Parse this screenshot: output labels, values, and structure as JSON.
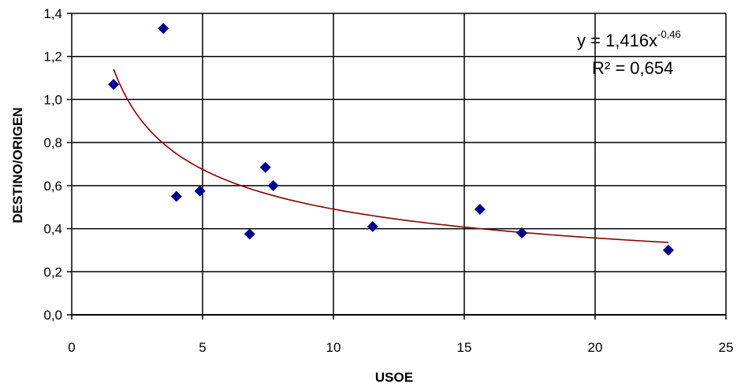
{
  "chart_data": {
    "type": "scatter",
    "title": "",
    "xlabel": "USOE",
    "ylabel": "DESTINO/ORIGEN",
    "xlim": [
      0,
      25
    ],
    "ylim": [
      0,
      1.4
    ],
    "x_ticks": [
      0,
      5,
      10,
      15,
      20,
      25
    ],
    "y_ticks": [
      0,
      0.2,
      0.4,
      0.6,
      0.8,
      1.0,
      1.2,
      1.4
    ],
    "x_tick_labels": [
      "0",
      "5",
      "10",
      "15",
      "20",
      "25"
    ],
    "y_tick_labels": [
      "0,0",
      "0,2",
      "0,4",
      "0,6",
      "0,8",
      "1,0",
      "1,2",
      "1,4"
    ],
    "grid": true,
    "legend": "none",
    "points": [
      {
        "x": 1.6,
        "y": 1.07
      },
      {
        "x": 3.5,
        "y": 1.33
      },
      {
        "x": 4.0,
        "y": 0.55
      },
      {
        "x": 4.9,
        "y": 0.575
      },
      {
        "x": 6.8,
        "y": 0.375
      },
      {
        "x": 7.4,
        "y": 0.685
      },
      {
        "x": 7.7,
        "y": 0.6
      },
      {
        "x": 11.5,
        "y": 0.41
      },
      {
        "x": 15.6,
        "y": 0.49
      },
      {
        "x": 17.2,
        "y": 0.38
      },
      {
        "x": 22.8,
        "y": 0.3
      }
    ],
    "trendline": {
      "type": "power",
      "coefficient": 1.416,
      "exponent": -0.46,
      "x_range": [
        1.6,
        22.8
      ],
      "equation_prefix": "y = 1,416x",
      "equation_exponent": "-0,46",
      "r2_label": "R² = 0,654"
    },
    "colors": {
      "marker": "#00008B",
      "trendline": "#8B0000",
      "grid": "#000000"
    }
  }
}
